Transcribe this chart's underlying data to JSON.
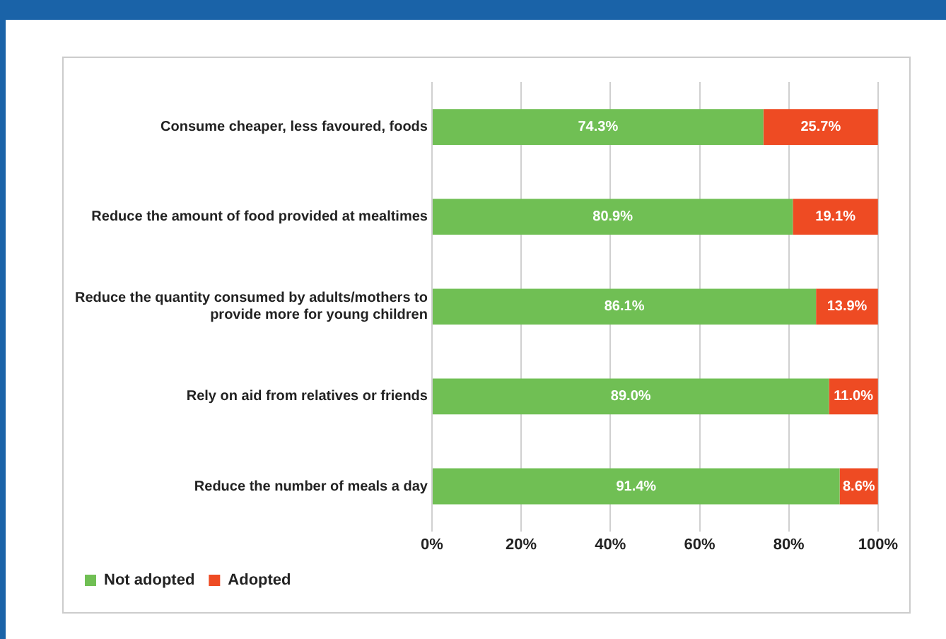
{
  "chart_data": {
    "type": "bar",
    "orientation": "horizontal",
    "stacked": true,
    "categories": [
      "Consume cheaper, less favoured, foods",
      "Reduce the amount of food provided at mealtimes",
      "Reduce the quantity consumed by adults/mothers to provide more for young children",
      "Rely on aid from relatives or friends",
      "Reduce the number of meals a day"
    ],
    "series": [
      {
        "name": "Not adopted",
        "color": "#70bf54",
        "values": [
          74.3,
          80.9,
          86.1,
          89.0,
          91.4
        ],
        "value_labels": [
          "74.3%",
          "80.9%",
          "86.1%",
          "89.0%",
          "91.4%"
        ]
      },
      {
        "name": "Adopted",
        "color": "#ee4b23",
        "values": [
          25.7,
          19.1,
          13.9,
          11.0,
          8.6
        ],
        "value_labels": [
          "25.7%",
          "19.1%",
          "13.9%",
          "11.0%",
          "8.6%"
        ]
      }
    ],
    "xlim": [
      0,
      100
    ],
    "xticks": [
      {
        "value": 0,
        "label": "0%"
      },
      {
        "value": 20,
        "label": "20%"
      },
      {
        "value": 40,
        "label": "40%"
      },
      {
        "value": 60,
        "label": "60%"
      },
      {
        "value": 80,
        "label": "80%"
      },
      {
        "value": 100,
        "label": "100%"
      }
    ],
    "grid": "x",
    "legend": "bottom left"
  }
}
